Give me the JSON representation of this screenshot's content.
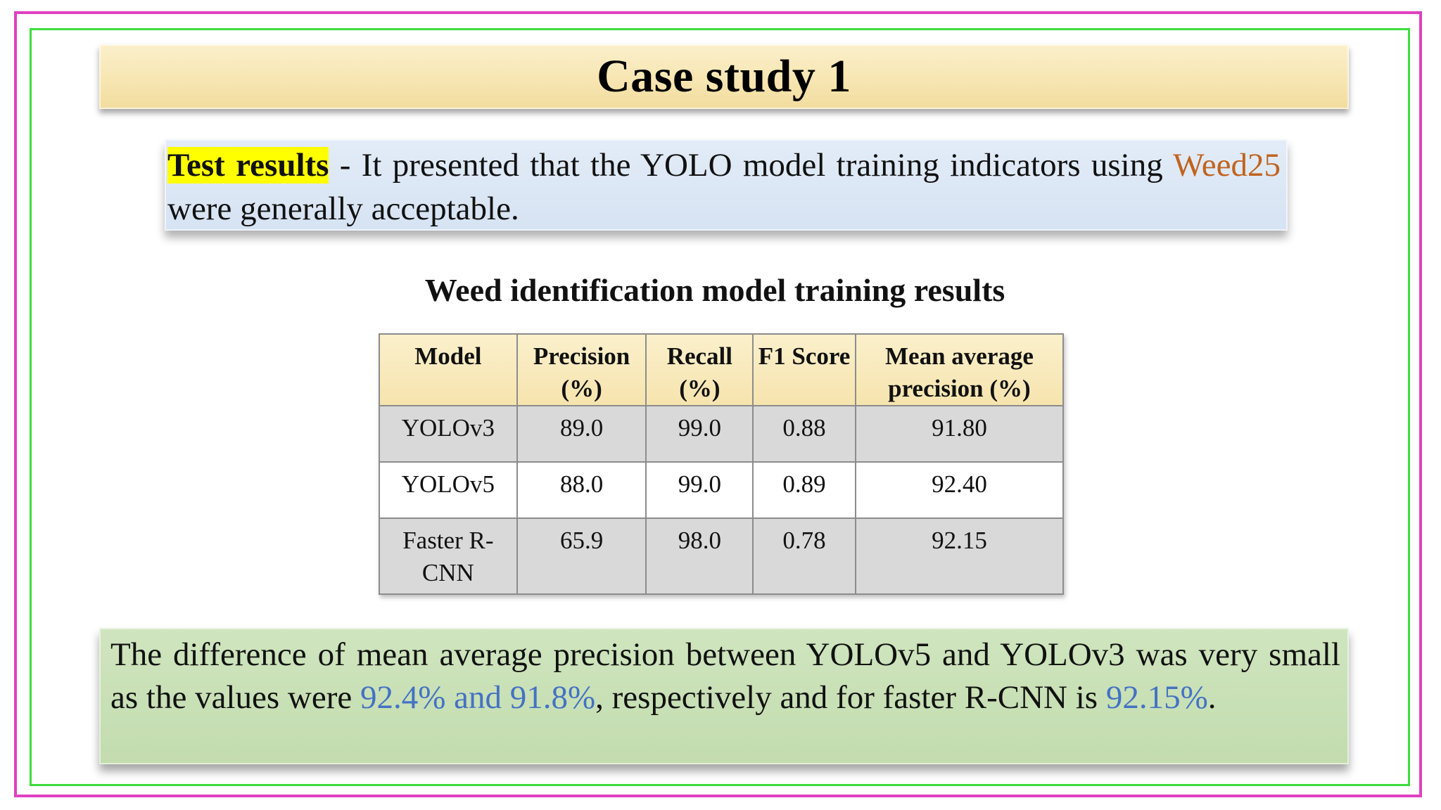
{
  "slide": {
    "title": "Case study 1"
  },
  "test_results": {
    "label": "Test results",
    "text_before": " - It presented that the YOLO model training indicators using ",
    "highlight": "Weed25",
    "text_after": " were generally acceptable."
  },
  "table": {
    "title": "Weed identification model training results",
    "headers": {
      "model": "Model",
      "precision": "Precision (%)",
      "recall": "Recall (%)",
      "f1": "F1 Score",
      "map": "Mean average precision (%)"
    },
    "rows": [
      {
        "model": "YOLOv3",
        "precision": "89.0",
        "recall": "99.0",
        "f1": "0.88",
        "map": "91.80"
      },
      {
        "model": "YOLOv5",
        "precision": "88.0",
        "recall": "99.0",
        "f1": "0.89",
        "map": "92.40"
      },
      {
        "model": "Faster R-CNN",
        "precision": "65.9",
        "recall": "98.0",
        "f1": "0.78",
        "map": "92.15"
      }
    ]
  },
  "summary": {
    "text_1": "The difference of mean average precision between YOLOv5 and YOLOv3 was very small as the values were ",
    "highlight_1": "92.4% and 91.8%",
    "text_2": ", respectively and for faster R-CNN is ",
    "highlight_2": "92.15%",
    "text_3": "."
  },
  "colors": {
    "outer_frame": "#e040c0",
    "inner_frame": "#3ddc3d",
    "title_bg": "#f7e6b2",
    "test_box_bg": "#dbe6f4",
    "summary_bg": "#c6dfb3",
    "label_highlight": "#ffff00",
    "orange_text": "#c0631f",
    "blue_text": "#4472c4"
  }
}
